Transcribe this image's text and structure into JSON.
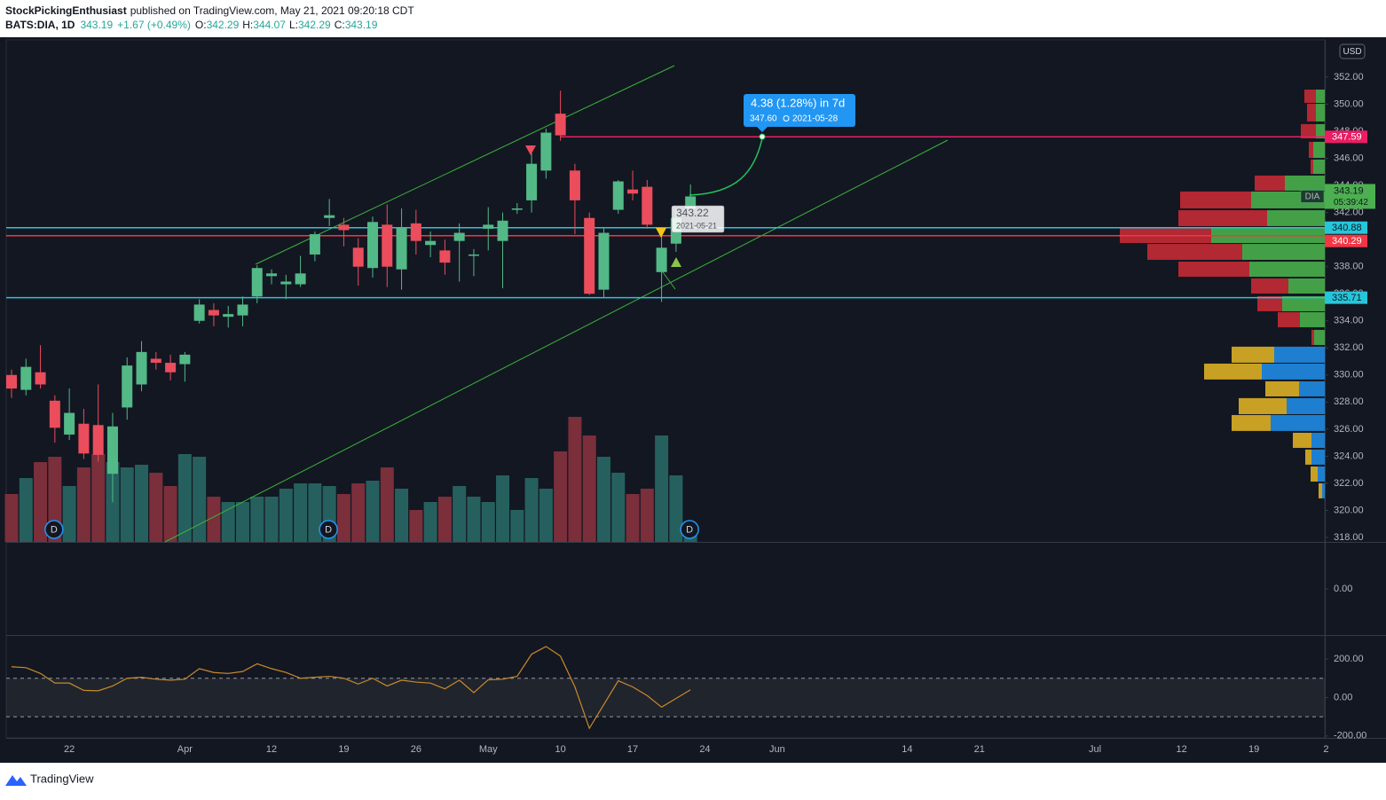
{
  "header": {
    "author": "StockPickingEnthusiast",
    "published": "published on TradingView.com, May 21, 2021 09:20:18 CDT",
    "symbol": "BATS:DIA, 1D",
    "change": "+1.67 (+0.49%)",
    "o": "O:",
    "h": "H:",
    "l": "L:",
    "c": "C:"
  },
  "footer": {
    "brand": "TradingView"
  },
  "chart_data": {
    "type": "candlestick",
    "categories": [
      null,
      null,
      null,
      null,
      "22",
      null,
      null,
      null,
      null,
      null,
      null,
      null,
      "Apr",
      null,
      null,
      null,
      null,
      null,
      "12",
      null,
      null,
      null,
      null,
      "19",
      null,
      null,
      null,
      null,
      "26",
      null,
      null,
      null,
      null,
      "May",
      null,
      null,
      null,
      null,
      "10",
      null,
      null,
      null,
      null,
      "17",
      null,
      null,
      null,
      null,
      "24",
      null,
      null,
      null,
      null,
      "Jun",
      null,
      null,
      null,
      null,
      null,
      null,
      null,
      null,
      "14",
      null,
      null,
      null,
      null,
      "21",
      null,
      null,
      null,
      null,
      null,
      null,
      null,
      "Jul",
      null,
      null,
      null,
      null,
      null,
      "12",
      null,
      null,
      null,
      null,
      "19",
      null,
      null,
      null,
      null,
      "2"
    ],
    "open": [
      330.0,
      328.9,
      330.2,
      328.1,
      325.6,
      326.4,
      326.3,
      322.7,
      327.6,
      329.3,
      331.2,
      330.9,
      330.8,
      334.0,
      334.8,
      334.3,
      334.4,
      335.8,
      337.3,
      336.7,
      336.7,
      338.9,
      341.6,
      341.1,
      339.4,
      337.9,
      341.1,
      337.8,
      341.2,
      339.6,
      339.2,
      339.9,
      338.8,
      340.8,
      339.9,
      342.2,
      342.9,
      345.1,
      349.3,
      345.1,
      341.6,
      336.3,
      342.2,
      343.7,
      343.9,
      337.6,
      339.7,
      342.29,
      null,
      null,
      null,
      null,
      null,
      null,
      null,
      null,
      null,
      null,
      null,
      null,
      null,
      null,
      null,
      null,
      null,
      null,
      null,
      null,
      null,
      null,
      null,
      null,
      null,
      null,
      null,
      null,
      null,
      null,
      null,
      null,
      null,
      null,
      null,
      null,
      null,
      null,
      null,
      null,
      null,
      null,
      null,
      null
    ],
    "high": [
      330.4,
      331.2,
      332.2,
      328.5,
      329.0,
      327.5,
      329.3,
      327.2,
      331.3,
      332.5,
      331.7,
      331.5,
      331.7,
      335.6,
      335.3,
      335.1,
      335.8,
      338.1,
      337.8,
      337.4,
      338.8,
      340.6,
      343.0,
      341.6,
      340.1,
      341.7,
      342.6,
      342.3,
      342.2,
      340.6,
      340.0,
      341.2,
      339.3,
      342.4,
      342.0,
      342.7,
      346.4,
      348.2,
      351.0,
      345.6,
      342.0,
      340.9,
      344.4,
      345.1,
      344.4,
      340.9,
      342.3,
      344.07,
      null,
      null,
      null,
      null,
      null,
      null,
      null,
      null,
      null,
      null,
      null,
      null,
      null,
      null,
      null,
      null,
      null,
      null,
      null,
      null,
      null,
      null,
      null,
      null,
      null,
      null,
      null,
      null,
      null,
      null,
      null,
      null,
      null,
      null,
      null,
      null,
      null,
      null,
      null,
      null,
      null,
      null,
      null,
      null
    ],
    "low": [
      328.3,
      328.5,
      329.0,
      325.0,
      325.2,
      323.8,
      323.6,
      320.6,
      326.7,
      328.8,
      330.4,
      329.6,
      329.5,
      333.8,
      333.6,
      333.5,
      333.6,
      335.3,
      336.7,
      335.6,
      336.5,
      338.4,
      341.0,
      339.5,
      336.6,
      337.2,
      336.5,
      336.3,
      338.9,
      338.7,
      337.4,
      336.9,
      337.3,
      339.2,
      336.4,
      341.9,
      342.0,
      344.5,
      347.3,
      340.4,
      335.9,
      335.7,
      341.9,
      342.9,
      340.8,
      335.4,
      339.1,
      342.29,
      null,
      null,
      null,
      null,
      null,
      null,
      null,
      null,
      null,
      null,
      null,
      null,
      null,
      null,
      null,
      null,
      null,
      null,
      null,
      null,
      null,
      null,
      null,
      null,
      null,
      null,
      null,
      null,
      null,
      null,
      null,
      null,
      null,
      null,
      null,
      null,
      null,
      null,
      null,
      null,
      null,
      null,
      null,
      null
    ],
    "close": [
      329.0,
      330.6,
      329.3,
      326.1,
      327.2,
      324.2,
      324.1,
      326.2,
      330.7,
      331.7,
      330.9,
      330.2,
      331.5,
      335.2,
      334.4,
      334.5,
      335.2,
      337.9,
      337.5,
      336.9,
      337.5,
      340.4,
      341.8,
      340.7,
      338.0,
      341.3,
      338.0,
      340.9,
      339.9,
      339.9,
      338.3,
      340.5,
      338.9,
      341.1,
      341.4,
      342.3,
      345.6,
      347.9,
      347.7,
      342.9,
      336.0,
      340.5,
      344.3,
      343.4,
      341.1,
      339.4,
      341.6,
      343.19,
      null,
      null,
      null,
      null,
      null,
      null,
      null,
      null,
      null,
      null,
      null,
      null,
      null,
      null,
      null,
      null,
      null,
      null,
      null,
      null,
      null,
      null,
      null,
      null,
      null,
      null,
      null,
      null,
      null,
      null,
      null,
      null,
      null,
      null,
      null,
      null,
      null,
      null,
      null,
      null,
      null,
      null,
      null,
      null
    ],
    "volume": [
      1.8,
      2.4,
      3.0,
      3.2,
      2.1,
      2.8,
      3.3,
      3.0,
      2.8,
      2.9,
      2.6,
      2.1,
      3.3,
      3.2,
      1.7,
      1.5,
      1.5,
      1.7,
      1.7,
      2.0,
      2.2,
      2.2,
      2.1,
      1.8,
      2.2,
      2.3,
      2.8,
      2.0,
      1.2,
      1.5,
      1.7,
      2.1,
      1.7,
      1.5,
      2.5,
      1.2,
      2.4,
      2.0,
      3.4,
      4.7,
      4.0,
      3.2,
      2.6,
      1.8,
      2.0,
      4.0,
      2.5,
      0.4,
      null,
      null,
      null,
      null,
      null,
      null,
      null,
      null,
      null,
      null,
      null,
      null,
      null,
      null,
      null,
      null,
      null,
      null,
      null,
      null,
      null,
      null,
      null,
      null,
      null,
      null,
      null,
      null,
      null,
      null,
      null,
      null,
      null,
      null,
      null,
      null,
      null,
      null,
      null,
      null,
      null,
      null,
      null,
      null
    ],
    "cci": [
      160,
      155,
      125,
      75,
      75,
      37,
      35,
      60,
      100,
      105,
      95,
      90,
      95,
      150,
      130,
      125,
      135,
      175,
      150,
      130,
      100,
      105,
      110,
      100,
      70,
      100,
      60,
      90,
      80,
      75,
      45,
      90,
      25,
      92,
      95,
      110,
      225,
      265,
      215,
      55,
      -160,
      -37,
      87,
      55,
      10,
      -50,
      -5,
      40,
      null,
      null,
      null,
      null,
      null,
      null,
      null,
      null,
      null,
      null,
      null,
      null,
      null,
      null,
      null,
      null,
      null,
      null,
      null,
      null,
      null,
      null,
      null,
      null,
      null,
      null,
      null,
      null,
      null,
      null,
      null,
      null,
      null,
      null,
      null,
      null,
      null,
      null,
      null,
      null,
      null,
      null,
      null,
      null
    ],
    "up_color": "#53b987",
    "down_color": "#eb4d5c",
    "volume_up_color": "#26605e",
    "volume_down_color": "#7a2f3b",
    "ylim": [
      317.67,
      354.75
    ],
    "yticks": [
      {
        "value": 318,
        "label": "318.00"
      },
      {
        "value": 320,
        "label": "320.00"
      },
      {
        "value": 322,
        "label": "322.00"
      },
      {
        "value": 324,
        "label": "324.00"
      },
      {
        "value": 326,
        "label": "326.00"
      },
      {
        "value": 328,
        "label": "328.00"
      },
      {
        "value": 330,
        "label": "330.00"
      },
      {
        "value": 332,
        "label": "332.00"
      },
      {
        "value": 334,
        "label": "334.00"
      },
      {
        "value": 336,
        "label": "336.00"
      },
      {
        "value": 338,
        "label": "338.00"
      },
      {
        "value": 340,
        "label": "340.00"
      },
      {
        "value": 342,
        "label": "342.00"
      },
      {
        "value": 344,
        "label": "344.00"
      },
      {
        "value": 346,
        "label": "346.00"
      },
      {
        "value": 348,
        "label": "348.00"
      },
      {
        "value": 350,
        "label": "350.00"
      },
      {
        "value": 352,
        "label": "352.00"
      }
    ],
    "cci_color": "#c98a2a",
    "cci_ylim": [
      -210,
      320
    ],
    "cci_yticks": [
      {
        "value": 200,
        "label": "200.00"
      },
      {
        "value": 0,
        "label": "0.00"
      },
      {
        "value": -200,
        "label": "-200.00"
      }
    ],
    "cci_band": [
      -100,
      100
    ],
    "pane2_ylim": [
      -0.5,
      0.5
    ],
    "pane2_yticks": [
      {
        "value": 0,
        "label": "0.00"
      }
    ],
    "levels": [
      {
        "value": 347.59,
        "color": "#e91e63"
      },
      {
        "value": 340.88,
        "color": "#26c6da"
      },
      {
        "value": 340.29,
        "color": "#f23645"
      },
      {
        "value": 335.71,
        "color": "#26c6da"
      }
    ],
    "currency": "USD",
    "symbol_tag": "DIA",
    "countdown": "05:39:42",
    "projection": {
      "text": "4.38 (1.28%) in 7d",
      "price": 347.6,
      "price_label": "347.60",
      "date": "2021-05-28"
    },
    "crosshair": {
      "price": 343.22,
      "date": "2021-05-21"
    },
    "dividend_label": "D",
    "volume_profile": [
      {
        "up_color": "#43a047",
        "down_color": "#b22833",
        "rows": [
          {
            "low": 350.03,
            "high": 351.08,
            "up": 10,
            "down": 13
          },
          {
            "low": 348.66,
            "high": 350.03,
            "up": 10,
            "down": 10
          },
          {
            "low": 347.41,
            "high": 348.53,
            "up": 10,
            "down": 17
          },
          {
            "low": 345.97,
            "high": 347.22,
            "up": 13,
            "down": 5
          },
          {
            "low": 344.79,
            "high": 345.91,
            "up": 13,
            "down": 3
          },
          {
            "low": 343.55,
            "high": 344.73,
            "up": 45,
            "down": 34
          },
          {
            "low": 342.24,
            "high": 343.55,
            "up": 83,
            "down": 80
          },
          {
            "low": 340.93,
            "high": 342.17,
            "up": 65,
            "down": 100
          },
          {
            "low": 339.68,
            "high": 340.86,
            "up": 128,
            "down": 103
          },
          {
            "low": 338.44,
            "high": 339.68,
            "up": 93,
            "down": 107
          },
          {
            "low": 337.19,
            "high": 338.37,
            "up": 85,
            "down": 80
          },
          {
            "low": 335.95,
            "high": 337.13,
            "up": 41,
            "down": 42
          },
          {
            "low": 334.64,
            "high": 335.82,
            "up": 48,
            "down": 28
          },
          {
            "low": 333.46,
            "high": 334.64,
            "up": 28,
            "down": 25
          },
          {
            "low": 332.15,
            "high": 333.33,
            "up": 12,
            "down": 3
          }
        ]
      },
      {
        "up_color": "#1e7fd0",
        "down_color": "#c8a023",
        "rows": [
          {
            "low": 330.84,
            "high": 332.09,
            "up": 57,
            "down": 48
          },
          {
            "low": 329.6,
            "high": 330.84,
            "up": 71,
            "down": 65
          },
          {
            "low": 328.35,
            "high": 329.53,
            "up": 29,
            "down": 38
          },
          {
            "low": 327.04,
            "high": 328.29,
            "up": 43,
            "down": 54
          },
          {
            "low": 325.8,
            "high": 327.04,
            "up": 61,
            "down": 44
          },
          {
            "low": 324.55,
            "high": 325.73,
            "up": 15,
            "down": 21
          },
          {
            "low": 323.31,
            "high": 324.49,
            "up": 15,
            "down": 7
          },
          {
            "low": 322.06,
            "high": 323.24,
            "up": 8,
            "down": 8
          },
          {
            "low": 320.82,
            "high": 322.0,
            "up": 3,
            "down": 4
          }
        ]
      }
    ]
  }
}
